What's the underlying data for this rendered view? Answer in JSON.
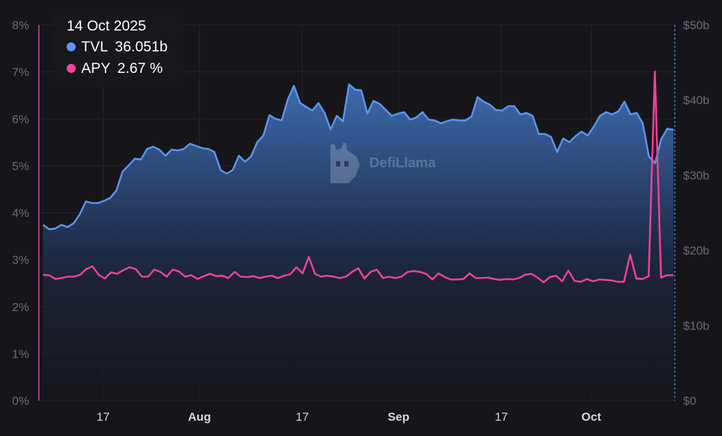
{
  "colors": {
    "tvl": "#5b95f2",
    "apy": "#f2419b",
    "background": "#16161a",
    "grid": "#25252b"
  },
  "tooltip": {
    "date": "14 Oct 2025",
    "tvl_label": "TVL",
    "tvl_value": "36.051b",
    "apy_label": "APY",
    "apy_value": "2.67 %"
  },
  "watermark": {
    "text": "DefiLlama",
    "icon": "llama-logo-icon"
  },
  "chart_data": {
    "type": "line",
    "x_start": "2025-07-07",
    "x_end": "2025-10-14",
    "x_ticks": [
      {
        "label": "17",
        "date": "2025-07-17",
        "bold": false
      },
      {
        "label": "Aug",
        "date": "2025-08-01",
        "bold": true
      },
      {
        "label": "17",
        "date": "2025-08-17",
        "bold": false
      },
      {
        "label": "Sep",
        "date": "2025-09-01",
        "bold": true
      },
      {
        "label": "17",
        "date": "2025-09-17",
        "bold": false
      },
      {
        "label": "Oct",
        "date": "2025-10-01",
        "bold": true
      }
    ],
    "y_left": {
      "range": [
        0,
        8
      ],
      "ticks": [
        {
          "v": 0,
          "label": "0%"
        },
        {
          "v": 1,
          "label": "1%"
        },
        {
          "v": 2,
          "label": "2%"
        },
        {
          "v": 3,
          "label": "3%"
        },
        {
          "v": 4,
          "label": "4%"
        },
        {
          "v": 5,
          "label": "5%"
        },
        {
          "v": 6,
          "label": "6%"
        },
        {
          "v": 7,
          "label": "7%"
        },
        {
          "v": 8,
          "label": "8%"
        }
      ]
    },
    "y_right": {
      "range": [
        0,
        50
      ],
      "ticks": [
        {
          "v": 0,
          "label": "$0"
        },
        {
          "v": 10,
          "label": "$10b"
        },
        {
          "v": 20,
          "label": "$20b"
        },
        {
          "v": 30,
          "label": "$30b"
        },
        {
          "v": 40,
          "label": "$40b"
        },
        {
          "v": 50,
          "label": "$50b"
        }
      ]
    },
    "series": [
      {
        "name": "TVL",
        "axis": "right",
        "fill": "area",
        "points": [
          [
            "2025-07-07",
            23.4
          ],
          [
            "2025-07-08",
            22.8
          ],
          [
            "2025-07-09",
            22.9
          ],
          [
            "2025-07-10",
            23.4
          ],
          [
            "2025-07-11",
            23.1
          ],
          [
            "2025-07-12",
            23.6
          ],
          [
            "2025-07-13",
            24.8
          ],
          [
            "2025-07-14",
            26.5
          ],
          [
            "2025-07-15",
            26.3
          ],
          [
            "2025-07-16",
            26.3
          ],
          [
            "2025-07-17",
            26.6
          ],
          [
            "2025-07-18",
            27.0
          ],
          [
            "2025-07-19",
            28.0
          ],
          [
            "2025-07-20",
            30.5
          ],
          [
            "2025-07-21",
            31.3
          ],
          [
            "2025-07-22",
            32.2
          ],
          [
            "2025-07-23",
            32.1
          ],
          [
            "2025-07-24",
            33.5
          ],
          [
            "2025-07-25",
            33.8
          ],
          [
            "2025-07-26",
            33.4
          ],
          [
            "2025-07-27",
            32.6
          ],
          [
            "2025-07-28",
            33.4
          ],
          [
            "2025-07-29",
            33.3
          ],
          [
            "2025-07-30",
            33.5
          ],
          [
            "2025-07-31",
            34.2
          ],
          [
            "2025-08-01",
            33.9
          ],
          [
            "2025-08-02",
            33.6
          ],
          [
            "2025-08-03",
            33.5
          ],
          [
            "2025-08-04",
            33.1
          ],
          [
            "2025-08-05",
            30.7
          ],
          [
            "2025-08-06",
            30.2
          ],
          [
            "2025-08-07",
            30.7
          ],
          [
            "2025-08-08",
            32.6
          ],
          [
            "2025-08-09",
            31.8
          ],
          [
            "2025-08-10",
            32.5
          ],
          [
            "2025-08-11",
            34.4
          ],
          [
            "2025-08-12",
            35.3
          ],
          [
            "2025-08-13",
            38.0
          ],
          [
            "2025-08-14",
            37.5
          ],
          [
            "2025-08-15",
            37.3
          ],
          [
            "2025-08-16",
            40.1
          ],
          [
            "2025-08-17",
            41.9
          ],
          [
            "2025-08-18",
            39.6
          ],
          [
            "2025-08-19",
            39.1
          ],
          [
            "2025-08-20",
            38.6
          ],
          [
            "2025-08-21",
            39.6
          ],
          [
            "2025-08-22",
            38.3
          ],
          [
            "2025-08-23",
            36.1
          ],
          [
            "2025-08-24",
            37.9
          ],
          [
            "2025-08-25",
            37.2
          ],
          [
            "2025-08-26",
            42.1
          ],
          [
            "2025-08-27",
            41.4
          ],
          [
            "2025-08-28",
            41.3
          ],
          [
            "2025-08-29",
            38.2
          ],
          [
            "2025-08-30",
            39.9
          ],
          [
            "2025-08-31",
            39.5
          ],
          [
            "2025-09-01",
            38.7
          ],
          [
            "2025-09-02",
            37.9
          ],
          [
            "2025-09-03",
            38.2
          ],
          [
            "2025-09-04",
            38.4
          ],
          [
            "2025-09-05",
            37.4
          ],
          [
            "2025-09-06",
            37.7
          ],
          [
            "2025-09-07",
            38.4
          ],
          [
            "2025-09-08",
            37.4
          ],
          [
            "2025-09-09",
            37.3
          ],
          [
            "2025-09-10",
            36.9
          ],
          [
            "2025-09-11",
            37.2
          ],
          [
            "2025-09-12",
            37.4
          ],
          [
            "2025-09-13",
            37.3
          ],
          [
            "2025-09-14",
            37.3
          ],
          [
            "2025-09-15",
            37.8
          ],
          [
            "2025-09-16",
            40.4
          ],
          [
            "2025-09-17",
            39.8
          ],
          [
            "2025-09-18",
            39.4
          ],
          [
            "2025-09-19",
            38.7
          ],
          [
            "2025-09-20",
            38.6
          ],
          [
            "2025-09-21",
            39.2
          ],
          [
            "2025-09-22",
            39.2
          ],
          [
            "2025-09-23",
            38.1
          ],
          [
            "2025-09-24",
            38.3
          ],
          [
            "2025-09-25",
            37.9
          ],
          [
            "2025-09-26",
            35.5
          ],
          [
            "2025-09-27",
            35.5
          ],
          [
            "2025-09-28",
            35.1
          ],
          [
            "2025-09-29",
            33.1
          ],
          [
            "2025-09-30",
            34.9
          ],
          [
            "2025-10-01",
            34.4
          ],
          [
            "2025-10-02",
            35.2
          ],
          [
            "2025-10-03",
            35.8
          ],
          [
            "2025-10-04",
            35.3
          ],
          [
            "2025-10-05",
            36.5
          ],
          [
            "2025-10-06",
            37.9
          ],
          [
            "2025-10-07",
            38.4
          ],
          [
            "2025-10-08",
            38.1
          ],
          [
            "2025-10-09",
            38.5
          ],
          [
            "2025-10-10",
            39.8
          ],
          [
            "2025-10-11",
            38.1
          ],
          [
            "2025-10-12",
            38.3
          ],
          [
            "2025-10-13",
            36.9
          ],
          [
            "2025-10-14",
            32.5
          ],
          [
            "2025-10-14",
            31.6
          ],
          [
            "2025-10-14",
            34.8
          ],
          [
            "2025-10-14",
            36.2
          ],
          [
            "2025-10-14",
            36.05
          ]
        ]
      },
      {
        "name": "APY",
        "axis": "left",
        "fill": "none",
        "points": [
          [
            "2025-07-07",
            2.68
          ],
          [
            "2025-07-08",
            2.67
          ],
          [
            "2025-07-09",
            2.59
          ],
          [
            "2025-07-10",
            2.61
          ],
          [
            "2025-07-11",
            2.64
          ],
          [
            "2025-07-12",
            2.64
          ],
          [
            "2025-07-13",
            2.68
          ],
          [
            "2025-07-14",
            2.8
          ],
          [
            "2025-07-15",
            2.86
          ],
          [
            "2025-07-16",
            2.68
          ],
          [
            "2025-07-17",
            2.6
          ],
          [
            "2025-07-18",
            2.73
          ],
          [
            "2025-07-19",
            2.7
          ],
          [
            "2025-07-20",
            2.78
          ],
          [
            "2025-07-21",
            2.84
          ],
          [
            "2025-07-22",
            2.8
          ],
          [
            "2025-07-23",
            2.64
          ],
          [
            "2025-07-24",
            2.64
          ],
          [
            "2025-07-25",
            2.79
          ],
          [
            "2025-07-26",
            2.74
          ],
          [
            "2025-07-27",
            2.64
          ],
          [
            "2025-07-28",
            2.79
          ],
          [
            "2025-07-29",
            2.75
          ],
          [
            "2025-07-30",
            2.64
          ],
          [
            "2025-07-31",
            2.67
          ],
          [
            "2025-08-01",
            2.59
          ],
          [
            "2025-08-02",
            2.65
          ],
          [
            "2025-08-03",
            2.7
          ],
          [
            "2025-08-04",
            2.65
          ],
          [
            "2025-08-05",
            2.66
          ],
          [
            "2025-08-06",
            2.61
          ],
          [
            "2025-08-07",
            2.74
          ],
          [
            "2025-08-08",
            2.64
          ],
          [
            "2025-08-09",
            2.63
          ],
          [
            "2025-08-10",
            2.65
          ],
          [
            "2025-08-11",
            2.61
          ],
          [
            "2025-08-12",
            2.64
          ],
          [
            "2025-08-13",
            2.66
          ],
          [
            "2025-08-14",
            2.61
          ],
          [
            "2025-08-15",
            2.66
          ],
          [
            "2025-08-16",
            2.69
          ],
          [
            "2025-08-17",
            2.84
          ],
          [
            "2025-08-18",
            2.71
          ],
          [
            "2025-08-19",
            3.06
          ],
          [
            "2025-08-20",
            2.7
          ],
          [
            "2025-08-21",
            2.64
          ],
          [
            "2025-08-22",
            2.66
          ],
          [
            "2025-08-23",
            2.64
          ],
          [
            "2025-08-24",
            2.61
          ],
          [
            "2025-08-25",
            2.64
          ],
          [
            "2025-08-26",
            2.74
          ],
          [
            "2025-08-27",
            2.82
          ],
          [
            "2025-08-28",
            2.6
          ],
          [
            "2025-08-29",
            2.74
          ],
          [
            "2025-08-30",
            2.79
          ],
          [
            "2025-08-31",
            2.61
          ],
          [
            "2025-09-01",
            2.64
          ],
          [
            "2025-09-02",
            2.61
          ],
          [
            "2025-09-03",
            2.64
          ],
          [
            "2025-09-04",
            2.74
          ],
          [
            "2025-09-05",
            2.76
          ],
          [
            "2025-09-06",
            2.74
          ],
          [
            "2025-09-07",
            2.7
          ],
          [
            "2025-09-08",
            2.58
          ],
          [
            "2025-09-09",
            2.71
          ],
          [
            "2025-09-10",
            2.63
          ],
          [
            "2025-09-11",
            2.58
          ],
          [
            "2025-09-12",
            2.58
          ],
          [
            "2025-09-13",
            2.59
          ],
          [
            "2025-09-14",
            2.71
          ],
          [
            "2025-09-15",
            2.61
          ],
          [
            "2025-09-16",
            2.61
          ],
          [
            "2025-09-17",
            2.62
          ],
          [
            "2025-09-18",
            2.59
          ],
          [
            "2025-09-19",
            2.57
          ],
          [
            "2025-09-20",
            2.59
          ],
          [
            "2025-09-21",
            2.58
          ],
          [
            "2025-09-22",
            2.61
          ],
          [
            "2025-09-23",
            2.68
          ],
          [
            "2025-09-24",
            2.7
          ],
          [
            "2025-09-25",
            2.62
          ],
          [
            "2025-09-26",
            2.52
          ],
          [
            "2025-09-27",
            2.63
          ],
          [
            "2025-09-28",
            2.66
          ],
          [
            "2025-09-29",
            2.54
          ],
          [
            "2025-09-30",
            2.77
          ],
          [
            "2025-10-01",
            2.55
          ],
          [
            "2025-10-02",
            2.53
          ],
          [
            "2025-10-03",
            2.59
          ],
          [
            "2025-10-04",
            2.54
          ],
          [
            "2025-10-05",
            2.58
          ],
          [
            "2025-10-06",
            2.57
          ],
          [
            "2025-10-07",
            2.56
          ],
          [
            "2025-10-08",
            2.53
          ],
          [
            "2025-10-09",
            2.53
          ],
          [
            "2025-10-10",
            3.11
          ],
          [
            "2025-10-11",
            2.6
          ],
          [
            "2025-10-12",
            2.59
          ],
          [
            "2025-10-13",
            2.65
          ],
          [
            "2025-10-13",
            7.01
          ],
          [
            "2025-10-14",
            2.62
          ],
          [
            "2025-10-14",
            2.67
          ],
          [
            "2025-10-14",
            2.67
          ]
        ]
      }
    ],
    "grid": true,
    "legend": "tooltip top-left"
  }
}
